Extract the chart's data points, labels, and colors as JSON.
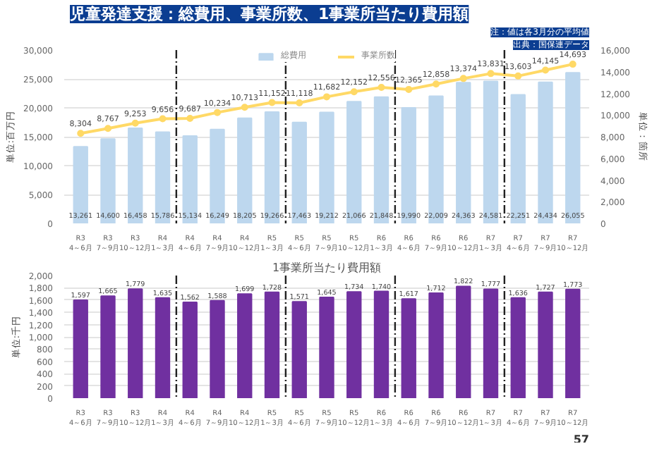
{
  "chart_data": [
    {
      "type": "bar",
      "title": "児童発達支援：総費用、事業所数、1事業所当たり費用額",
      "annotations": [
        "出典：国保連データ",
        "注：値は各3月分の平均値"
      ],
      "categories": [
        "R3 4～6月",
        "R3 7～9月",
        "R3 10～12月",
        "R4 1～3月",
        "R4 4～6月",
        "R4 7～9月",
        "R4 10～12月",
        "R5 1～3月",
        "R5 4～6月",
        "R5 7～9月",
        "R5 10～12月",
        "R6 1～3月",
        "R6 4～6月",
        "R6 7～9月",
        "R6 10～12月",
        "R7 1～3月",
        "R7 4～6月",
        "R7 7～9月",
        "R7 10～12月"
      ],
      "ylabel": "単位:百万円",
      "y2label": "単位：箇所",
      "series": [
        {
          "name": "総費用",
          "type": "bar",
          "color": "#bdd7ee",
          "values": [
            13261,
            14600,
            16458,
            15786,
            15134,
            16249,
            18205,
            19266,
            17463,
            19212,
            21066,
            21848,
            19990,
            22009,
            24363,
            24581,
            22251,
            24434,
            26055
          ],
          "value_labels": [
            "13,261",
            "14,600",
            "16,458",
            "15,786",
            "15,134",
            "16,249",
            "18,205",
            "19,266",
            "17,463",
            "19,212",
            "21,066",
            "21,848",
            "19,990",
            "22,009",
            "24,363",
            "24,581",
            "22,251",
            "24,434",
            "26,055"
          ]
        },
        {
          "name": "事業所数",
          "type": "line",
          "axis": "y2",
          "color": "#ffd966",
          "values": [
            8304,
            8767,
            9253,
            9656,
            9687,
            10234,
            10713,
            11152,
            11118,
            11682,
            12152,
            12556,
            12365,
            12858,
            13374,
            13831,
            13603,
            14145,
            14693
          ],
          "value_labels": [
            "8,304",
            "8,767",
            "9,253",
            "9,656",
            "9,687",
            "10,234",
            "10,713",
            "11,152",
            "11,118",
            "11,682",
            "12,152",
            "12,556",
            "12,365",
            "12,858",
            "13,374",
            "13,831",
            "13,603",
            "14,145",
            "14,693"
          ]
        }
      ],
      "marker": "circle",
      "legend": "top",
      "grid": "y",
      "ylim": [
        0,
        30000
      ],
      "yticks": [
        0,
        {
          "value": 5000,
          "label": "5,000"
        },
        {
          "value": 10000,
          "label": "10,000"
        },
        {
          "value": 15000,
          "label": "15,000"
        },
        {
          "value": 20000,
          "label": "20,000"
        },
        {
          "value": 25000,
          "label": "25,000"
        },
        {
          "value": 30000,
          "label": "30,000"
        }
      ],
      "y2lim": [
        0,
        16000
      ],
      "y2ticks": [
        0,
        {
          "value": 2000,
          "label": "2,000"
        },
        {
          "value": 4000,
          "label": "4,000"
        },
        {
          "value": 6000,
          "label": "6,000"
        },
        {
          "value": 8000,
          "label": "8,000"
        },
        {
          "value": 10000,
          "label": "10,000"
        },
        {
          "value": 12000,
          "label": "12,000"
        },
        {
          "value": 14000,
          "label": "14,000"
        },
        {
          "value": 16000,
          "label": "16,000"
        }
      ]
    },
    {
      "type": "bar",
      "title": "1事業所当たり費用額",
      "annotations": [
        "57"
      ],
      "categories": [
        "R3 4～6月",
        "R3 7～9月",
        "R3 10～12月",
        "R4 1～3月",
        "R4 4～6月",
        "R4 7～9月",
        "R4 10～12月",
        "R5 1～3月",
        "R5 4～6月",
        "R5 7～9月",
        "R5 10～12月",
        "R6 1～3月",
        "R6 4～6月",
        "R6 7～9月",
        "R6 10～12月",
        "R7 1～3月",
        "R7 4～6月",
        "R7 7～9月",
        "R7 10～12月"
      ],
      "ylabel": "単位:千円",
      "color": "#7030a0",
      "values": [
        1597,
        1665,
        1779,
        1635,
        1562,
        1588,
        1699,
        1728,
        1571,
        1645,
        1734,
        1740,
        1617,
        1712,
        1822,
        1777,
        1636,
        1727,
        1773
      ],
      "value_labels": [
        "1,597",
        "1,665",
        "1,779",
        "1,635",
        "1,562",
        "1,588",
        "1,699",
        "1,728",
        "1,571",
        "1,645",
        "1,734",
        "1,740",
        "1,617",
        "1,712",
        "1,822",
        "1,777",
        "1,636",
        "1,727",
        "1,773"
      ],
      "grid": "y",
      "ylim": [
        0,
        2000
      ],
      "yticks": [
        0,
        200,
        400,
        600,
        800,
        {
          "value": 1000,
          "label": "1,000"
        },
        {
          "value": 1200,
          "label": "1,200"
        },
        {
          "value": 1400,
          "label": "1,400"
        },
        {
          "value": 1600,
          "label": "1,600"
        },
        {
          "value": 1800,
          "label": "1,800"
        },
        {
          "value": 2000,
          "label": "2,000"
        }
      ]
    }
  ]
}
